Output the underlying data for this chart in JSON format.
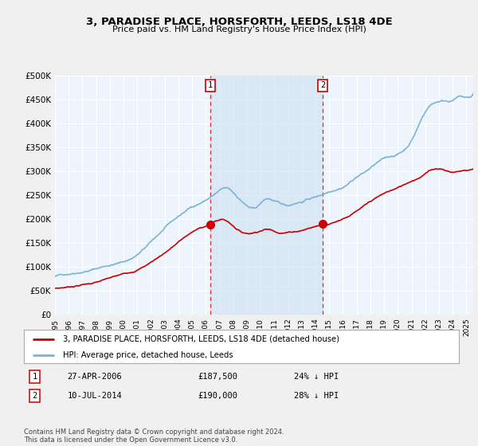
{
  "title": "3, PARADISE PLACE, HORSFORTH, LEEDS, LS18 4DE",
  "subtitle": "Price paid vs. HM Land Registry's House Price Index (HPI)",
  "ylim": [
    0,
    500000
  ],
  "yticks": [
    0,
    50000,
    100000,
    150000,
    200000,
    250000,
    300000,
    350000,
    400000,
    450000,
    500000
  ],
  "ytick_labels": [
    "£0",
    "£50K",
    "£100K",
    "£150K",
    "£200K",
    "£250K",
    "£300K",
    "£350K",
    "£400K",
    "£450K",
    "£500K"
  ],
  "hpi_color": "#7ab4d8",
  "price_color": "#cc0000",
  "plot_bg": "#eef4fb",
  "grid_color": "#d0d8e0",
  "fig_bg": "#f0f0f0",
  "purchase1_price": 187500,
  "purchase1_x": 2006.32,
  "purchase2_price": 190000,
  "purchase2_x": 2014.53,
  "legend_label_red": "3, PARADISE PLACE, HORSFORTH, LEEDS, LS18 4DE (detached house)",
  "legend_label_blue": "HPI: Average price, detached house, Leeds",
  "footer_text": "Contains HM Land Registry data © Crown copyright and database right 2024.\nThis data is licensed under the Open Government Licence v3.0.",
  "table_row1": [
    "1",
    "27-APR-2006",
    "£187,500",
    "24% ↓ HPI"
  ],
  "table_row2": [
    "2",
    "10-JUL-2014",
    "£190,000",
    "28% ↓ HPI"
  ],
  "xmin": 1995,
  "xmax": 2025.5,
  "shade_color": "#cce0f0"
}
